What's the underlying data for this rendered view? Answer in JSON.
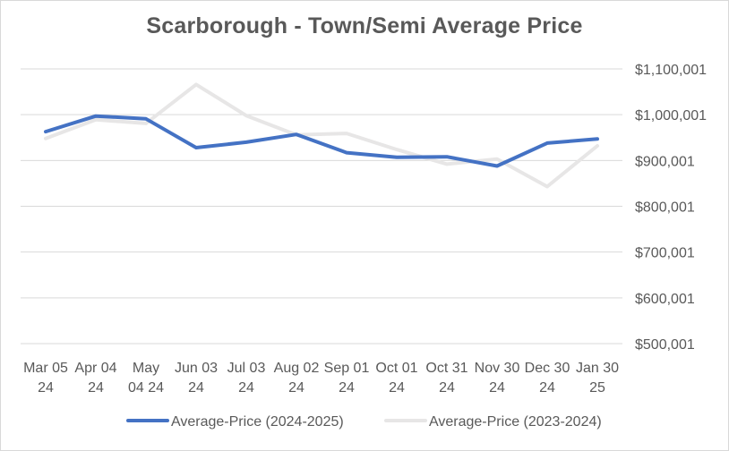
{
  "chart_data": {
    "type": "line",
    "title": "Scarborough - Town/Semi Average Price",
    "categories": [
      [
        "Mar 05",
        "24"
      ],
      [
        "Apr 04",
        "24"
      ],
      [
        "May",
        "04 24"
      ],
      [
        "Jun 03",
        "24"
      ],
      [
        "Jul 03",
        "24"
      ],
      [
        "Aug 02",
        "24"
      ],
      [
        "Sep 01",
        "24"
      ],
      [
        "Oct 01",
        "24"
      ],
      [
        "Oct 31",
        "24"
      ],
      [
        "Nov 30",
        "24"
      ],
      [
        "Dec 30",
        "24"
      ],
      [
        "Jan 30",
        "25"
      ]
    ],
    "y_ticks": [
      "$500,001",
      "$600,001",
      "$700,001",
      "$800,001",
      "$900,001",
      "$1,000,001",
      "$1,100,001"
    ],
    "y_tick_values": [
      500001,
      600001,
      700001,
      800001,
      900001,
      1000001,
      1100001
    ],
    "ylim": [
      500001,
      1100001
    ],
    "y_axis_side": "right",
    "grid": true,
    "legend_position": "bottom",
    "series": [
      {
        "name": "Average-Price (2024-2025)",
        "color": "#4472c4",
        "values": [
          963000,
          997000,
          991000,
          928000,
          940000,
          957000,
          917000,
          907000,
          908000,
          888000,
          938000,
          947000
        ]
      },
      {
        "name": "Average-Price (2023-2024)",
        "color": "#e7e6e6",
        "values": [
          948000,
          989000,
          981000,
          1066000,
          998000,
          956000,
          959000,
          924000,
          892000,
          903000,
          843000,
          932000
        ]
      }
    ]
  }
}
